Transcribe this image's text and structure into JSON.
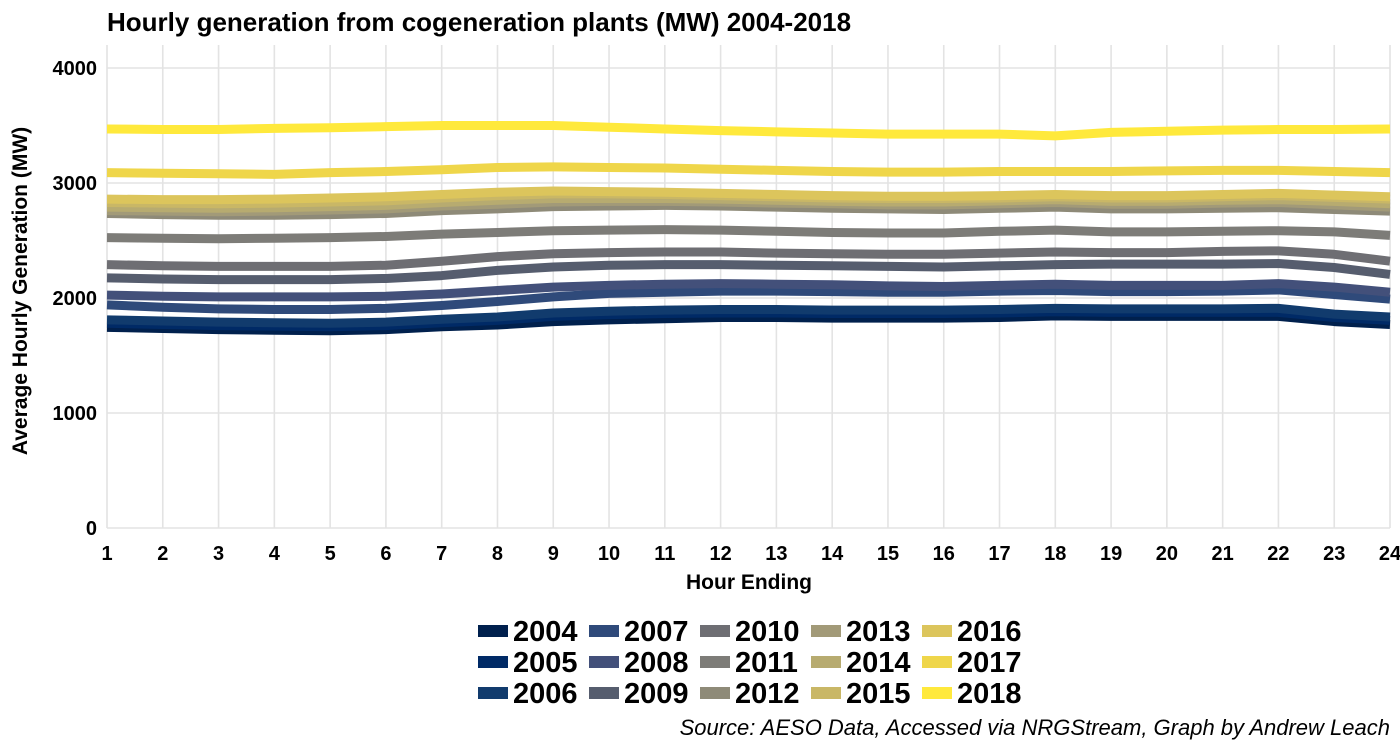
{
  "chart_data": {
    "type": "line",
    "title": "Hourly generation from cogeneration plants (MW) 2004-2018",
    "xlabel": "Hour Ending",
    "ylabel": "Average Hourly Generation (MW)",
    "caption": "Source: AESO Data, Accessed via NRGStream, Graph by Andrew Leach",
    "x": [
      1,
      2,
      3,
      4,
      5,
      6,
      7,
      8,
      9,
      10,
      11,
      12,
      13,
      14,
      15,
      16,
      17,
      18,
      19,
      20,
      21,
      22,
      23,
      24
    ],
    "x_ticks": [
      "1",
      "2",
      "3",
      "4",
      "5",
      "6",
      "7",
      "8",
      "9",
      "10",
      "11",
      "12",
      "13",
      "14",
      "15",
      "16",
      "17",
      "18",
      "19",
      "20",
      "21",
      "22",
      "23",
      "24"
    ],
    "xlim": [
      1,
      24
    ],
    "ylim": [
      0,
      4200
    ],
    "y_ticks": [
      0,
      1000,
      2000,
      3000,
      4000
    ],
    "grid": true,
    "legend_position": "bottom",
    "legend_columns": 5,
    "series": [
      {
        "name": "2004",
        "color": "#00204d",
        "values": [
          1745,
          1735,
          1725,
          1720,
          1715,
          1725,
          1750,
          1765,
          1795,
          1810,
          1820,
          1830,
          1830,
          1825,
          1825,
          1825,
          1830,
          1845,
          1840,
          1840,
          1840,
          1840,
          1795,
          1770
        ]
      },
      {
        "name": "2005",
        "color": "#002a66",
        "values": [
          1780,
          1770,
          1760,
          1755,
          1750,
          1760,
          1785,
          1805,
          1840,
          1855,
          1865,
          1870,
          1870,
          1865,
          1865,
          1865,
          1870,
          1880,
          1875,
          1875,
          1875,
          1875,
          1830,
          1805
        ]
      },
      {
        "name": "2006",
        "color": "#113b6d",
        "values": [
          1810,
          1800,
          1790,
          1785,
          1780,
          1790,
          1815,
          1835,
          1870,
          1885,
          1895,
          1900,
          1900,
          1895,
          1895,
          1895,
          1900,
          1910,
          1905,
          1905,
          1905,
          1910,
          1860,
          1835
        ]
      },
      {
        "name": "2007",
        "color": "#2f4a7a",
        "values": [
          1940,
          1920,
          1905,
          1900,
          1900,
          1910,
          1935,
          1970,
          2010,
          2040,
          2050,
          2060,
          2060,
          2055,
          2050,
          2050,
          2060,
          2065,
          2055,
          2055,
          2060,
          2070,
          2030,
          1990
        ]
      },
      {
        "name": "2008",
        "color": "#43507a",
        "values": [
          2025,
          2015,
          2010,
          2010,
          2010,
          2015,
          2035,
          2065,
          2095,
          2110,
          2120,
          2125,
          2120,
          2115,
          2105,
          2100,
          2110,
          2120,
          2110,
          2110,
          2110,
          2125,
          2095,
          2050
        ]
      },
      {
        "name": "2009",
        "color": "#565d6e",
        "values": [
          2175,
          2165,
          2160,
          2160,
          2160,
          2170,
          2195,
          2240,
          2270,
          2285,
          2290,
          2290,
          2285,
          2280,
          2275,
          2270,
          2280,
          2290,
          2295,
          2295,
          2295,
          2300,
          2265,
          2205
        ]
      },
      {
        "name": "2010",
        "color": "#6e6e73",
        "values": [
          2290,
          2280,
          2275,
          2275,
          2275,
          2285,
          2320,
          2360,
          2385,
          2395,
          2400,
          2400,
          2390,
          2385,
          2380,
          2380,
          2390,
          2400,
          2395,
          2395,
          2405,
          2410,
          2380,
          2320
        ]
      },
      {
        "name": "2011",
        "color": "#7d7c78",
        "values": [
          2525,
          2520,
          2515,
          2520,
          2525,
          2535,
          2555,
          2570,
          2585,
          2590,
          2595,
          2590,
          2580,
          2570,
          2565,
          2565,
          2580,
          2590,
          2575,
          2575,
          2580,
          2585,
          2575,
          2545
        ]
      },
      {
        "name": "2012",
        "color": "#8e8a78",
        "values": [
          2735,
          2725,
          2720,
          2720,
          2725,
          2735,
          2760,
          2775,
          2795,
          2800,
          2805,
          2800,
          2790,
          2780,
          2775,
          2770,
          2780,
          2790,
          2775,
          2775,
          2780,
          2785,
          2770,
          2755
        ]
      },
      {
        "name": "2013",
        "color": "#a29a78",
        "values": [
          2760,
          2755,
          2750,
          2755,
          2765,
          2775,
          2800,
          2815,
          2835,
          2840,
          2840,
          2835,
          2825,
          2820,
          2810,
          2810,
          2820,
          2830,
          2815,
          2815,
          2825,
          2830,
          2810,
          2790
        ]
      },
      {
        "name": "2014",
        "color": "#b7ab70",
        "values": [
          2790,
          2785,
          2780,
          2785,
          2795,
          2805,
          2830,
          2850,
          2865,
          2865,
          2865,
          2860,
          2850,
          2840,
          2835,
          2835,
          2845,
          2855,
          2840,
          2840,
          2850,
          2855,
          2840,
          2820
        ]
      },
      {
        "name": "2015",
        "color": "#c9b766",
        "values": [
          2830,
          2825,
          2820,
          2825,
          2835,
          2845,
          2870,
          2890,
          2905,
          2905,
          2900,
          2890,
          2880,
          2870,
          2865,
          2865,
          2870,
          2880,
          2870,
          2870,
          2880,
          2890,
          2875,
          2860
        ]
      },
      {
        "name": "2016",
        "color": "#dcc55c",
        "values": [
          2860,
          2855,
          2855,
          2860,
          2870,
          2880,
          2900,
          2920,
          2930,
          2925,
          2920,
          2910,
          2900,
          2890,
          2885,
          2885,
          2890,
          2900,
          2890,
          2890,
          2900,
          2910,
          2895,
          2880
        ]
      },
      {
        "name": "2017",
        "color": "#efd64a",
        "values": [
          3090,
          3085,
          3080,
          3075,
          3090,
          3100,
          3115,
          3135,
          3140,
          3135,
          3130,
          3120,
          3110,
          3100,
          3095,
          3095,
          3100,
          3100,
          3100,
          3105,
          3110,
          3110,
          3100,
          3090
        ]
      },
      {
        "name": "2018",
        "color": "#ffe93c",
        "values": [
          3470,
          3465,
          3465,
          3475,
          3480,
          3490,
          3500,
          3500,
          3500,
          3485,
          3470,
          3455,
          3445,
          3435,
          3425,
          3425,
          3425,
          3410,
          3440,
          3450,
          3460,
          3465,
          3465,
          3470
        ]
      }
    ]
  }
}
